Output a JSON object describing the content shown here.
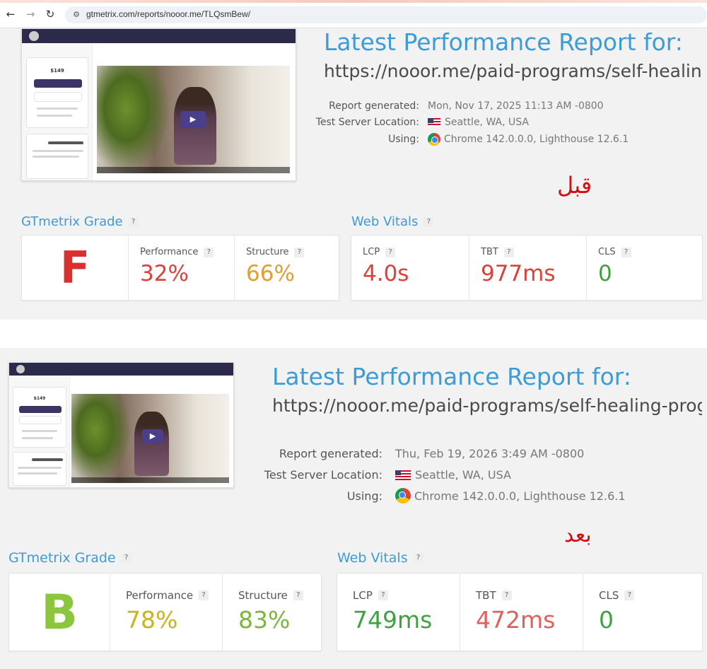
{
  "browser": {
    "back": "←",
    "forward": "→",
    "reload": "↻",
    "site_icon": "⚙",
    "url": "gtmetrix.com/reports/nooor.me/TLQsmBew/"
  },
  "before": {
    "title": "Latest Performance Report for:",
    "url": "https://nooor.me/paid-programs/self-healing...",
    "report_generated_label": "Report generated:",
    "report_generated_value": "Mon, Nov 17, 2025 11:13 AM -0800",
    "server_label": "Test Server Location:",
    "server_value": "Seattle, WA, USA",
    "using_label": "Using:",
    "using_value": "Chrome 142.0.0.0, Lighthouse 12.6.1",
    "arabic_label": "قبل",
    "grade_heading": "GTmetrix Grade",
    "vitals_heading": "Web Vitals",
    "help": "?",
    "grade": "F",
    "performance_label": "Performance",
    "performance_value": "32%",
    "structure_label": "Structure",
    "structure_value": "66%",
    "lcp_label": "LCP",
    "lcp_value": "4.0s",
    "tbt_label": "TBT",
    "tbt_value": "977ms",
    "cls_label": "CLS",
    "cls_value": "0",
    "thumb": {
      "price": "$149"
    }
  },
  "after": {
    "title": "Latest Performance Report for:",
    "url": "https://nooor.me/paid-programs/self-healing-progr...",
    "report_generated_label": "Report generated:",
    "report_generated_value": "Thu, Feb 19, 2026 3:49 AM -0800",
    "server_label": "Test Server Location:",
    "server_value": "Seattle, WA, USA",
    "using_label": "Using:",
    "using_value": "Chrome 142.0.0.0, Lighthouse 12.6.1",
    "arabic_label": "بعد",
    "grade_heading": "GTmetrix Grade",
    "vitals_heading": "Web Vitals",
    "help": "?",
    "grade": "B",
    "performance_label": "Performance",
    "performance_value": "78%",
    "structure_label": "Structure",
    "structure_value": "83%",
    "lcp_label": "LCP",
    "lcp_value": "749ms",
    "tbt_label": "TBT",
    "tbt_value": "472ms",
    "cls_label": "CLS",
    "cls_value": "0",
    "thumb": {
      "price": "$149"
    }
  },
  "colors": {
    "title_blue": "#3d9bd6",
    "grade_f_red": "#d9302f",
    "grade_b_green": "#8cc63f",
    "bad_red": "#d9413a",
    "amber": "#e0a030",
    "good_green": "#3ea33e",
    "yellow_green": "#c7b420",
    "light_green": "#79b83a",
    "arabic_red": "#d10f0f"
  }
}
